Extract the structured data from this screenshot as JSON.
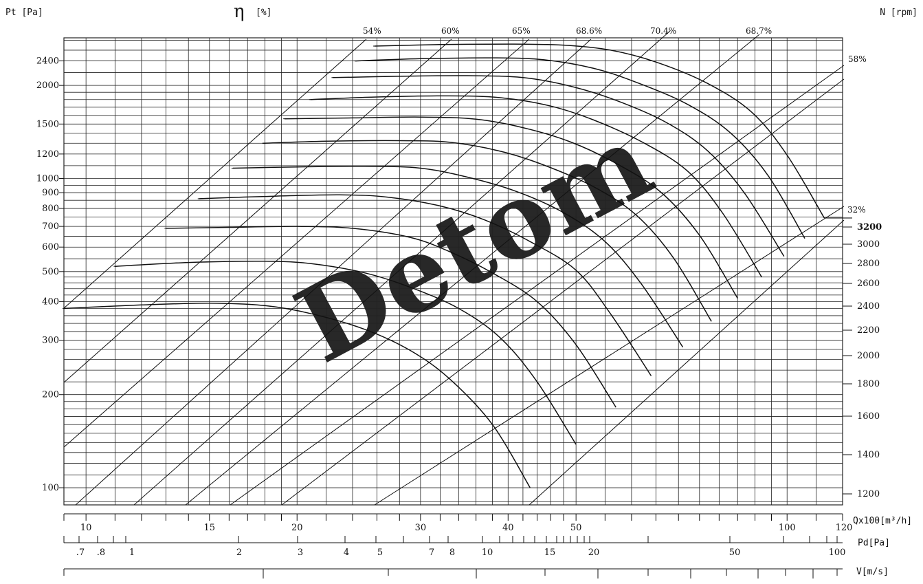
{
  "chart_data": {
    "type": "line",
    "title": "",
    "y_axis": {
      "label": "Pt [Pa]",
      "scale": "log",
      "range": [
        88,
        2850
      ],
      "tick_labels": [
        "100",
        "200",
        "300",
        "400",
        "500",
        "600",
        "700",
        "800",
        "900",
        "1000",
        "1200",
        "1500",
        "2000",
        "2400"
      ]
    },
    "efficiency_axis": {
      "symbol": "η",
      "unit": "[%]"
    },
    "speed_axis": {
      "label": "N [rpm]",
      "tick_labels": [
        "1200",
        "1400",
        "1600",
        "1800",
        "2000",
        "2200",
        "2400",
        "2600",
        "2800",
        "3000",
        "3200"
      ],
      "highlighted": "3200"
    },
    "x_axes": [
      {
        "label": "Qx100[m³/h]",
        "scale": "log",
        "range": [
          9.3,
          120
        ],
        "tick_labels": [
          "10",
          "15",
          "20",
          "30",
          "40",
          "50",
          "100",
          "120"
        ]
      },
      {
        "label": "Pd[Pa]",
        "scale": "log",
        "tick_labels": [
          ".7",
          ".8",
          "1",
          "2",
          "3",
          "4",
          "5",
          "7",
          "8",
          "10",
          "15",
          "20",
          "50",
          "100"
        ]
      },
      {
        "label": "V[m/s]",
        "tick_labels": []
      }
    ],
    "efficiency_lines": [
      {
        "label": "54%"
      },
      {
        "label": "60%"
      },
      {
        "label": "65%"
      },
      {
        "label": "68.6%"
      },
      {
        "label": "70.4%"
      },
      {
        "label": "68.7%"
      },
      {
        "label": "58%"
      },
      {
        "label": "32%"
      }
    ],
    "series": [
      {
        "rpm": 1200,
        "flow": [
          9.3,
          12,
          15,
          18,
          21,
          25,
          29,
          33,
          38,
          43
        ],
        "pressure": [
          380,
          390,
          395,
          388,
          365,
          325,
          278,
          225,
          160,
          100
        ]
      },
      {
        "rpm": 1400,
        "flow": [
          11,
          14,
          18,
          21,
          25,
          29,
          34,
          39,
          44,
          50
        ],
        "pressure": [
          520,
          535,
          540,
          530,
          495,
          445,
          380,
          305,
          220,
          138
        ]
      },
      {
        "rpm": 1600,
        "flow": [
          13,
          16,
          20,
          24,
          29,
          33,
          38,
          44,
          50,
          57
        ],
        "pressure": [
          690,
          695,
          700,
          690,
          645,
          580,
          495,
          400,
          290,
          182
        ]
      },
      {
        "rpm": 1800,
        "flow": [
          14.5,
          18,
          23,
          27,
          32,
          37,
          43,
          50,
          56,
          64
        ],
        "pressure": [
          860,
          875,
          885,
          870,
          815,
          735,
          625,
          505,
          365,
          230
        ]
      },
      {
        "rpm": 2000,
        "flow": [
          16.2,
          20,
          25,
          30,
          35,
          41,
          48,
          55,
          62,
          71
        ],
        "pressure": [
          1080,
          1090,
          1095,
          1080,
          1010,
          910,
          775,
          625,
          455,
          285
        ]
      },
      {
        "rpm": 2200,
        "flow": [
          17.9,
          22,
          28,
          33,
          39,
          45,
          53,
          61,
          69,
          78
        ],
        "pressure": [
          1300,
          1320,
          1325,
          1310,
          1225,
          1105,
          940,
          760,
          550,
          345
        ]
      },
      {
        "rpm": 2400,
        "flow": [
          19.2,
          24,
          30,
          36,
          42,
          49,
          57,
          66,
          75,
          85
        ],
        "pressure": [
          1560,
          1570,
          1580,
          1555,
          1460,
          1315,
          1120,
          905,
          655,
          410
        ]
      },
      {
        "rpm": 2600,
        "flow": [
          20.9,
          26,
          33,
          39,
          46,
          53,
          62,
          72,
          81,
          92
        ],
        "pressure": [
          1800,
          1835,
          1850,
          1825,
          1715,
          1545,
          1315,
          1060,
          770,
          480
        ]
      },
      {
        "rpm": 2800,
        "flow": [
          22.5,
          28,
          35,
          42,
          49,
          57,
          67,
          77,
          87,
          99
        ],
        "pressure": [
          2120,
          2140,
          2150,
          2120,
          1990,
          1790,
          1525,
          1230,
          895,
          560
        ]
      },
      {
        "rpm": 3000,
        "flow": [
          24.2,
          30,
          38,
          45,
          53,
          61,
          72,
          83,
          94,
          106
        ],
        "pressure": [
          2400,
          2440,
          2455,
          2420,
          2270,
          2045,
          1740,
          1405,
          1020,
          640
        ]
      },
      {
        "rpm": 3200,
        "flow": [
          25.8,
          32,
          40,
          48,
          56,
          65,
          77,
          89,
          100,
          113
        ],
        "pressure": [
          2680,
          2710,
          2720,
          2700,
          2600,
          2380,
          2030,
          1640,
          1190,
          745
        ]
      }
    ],
    "grid": true,
    "watermark": "Detom"
  },
  "colors": {
    "line": "#111111",
    "grid": "#222222",
    "watermark": "#9dbad8",
    "background": "#ffffff"
  }
}
